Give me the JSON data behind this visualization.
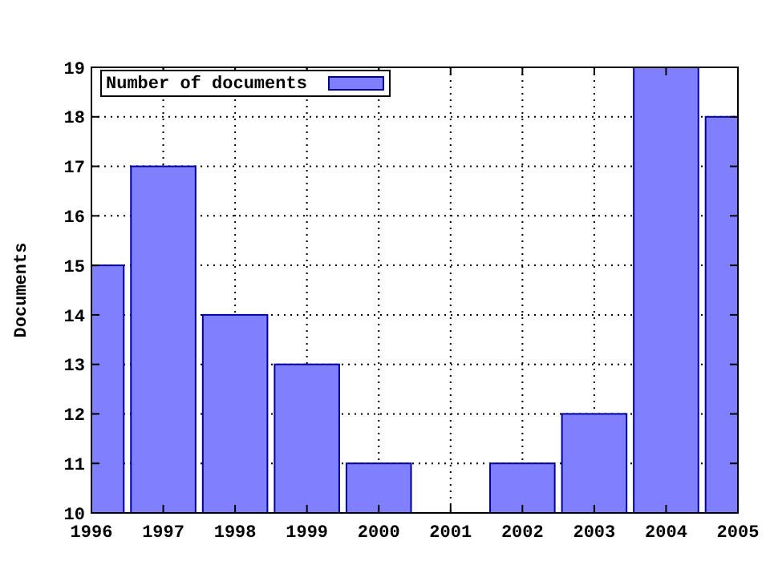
{
  "chart_data": {
    "type": "bar",
    "ylabel": "Documents",
    "x": [
      1996,
      1997,
      1998,
      1999,
      2000,
      2001,
      2002,
      2003,
      2004,
      2005
    ],
    "series": [
      {
        "name": "Number of documents",
        "color": "#8080ff",
        "values": [
          15,
          17,
          14,
          13,
          11,
          10,
          11,
          12,
          19,
          18
        ]
      }
    ],
    "xlim": [
      1996,
      2005
    ],
    "xticks": [
      1996,
      1997,
      1998,
      1999,
      2000,
      2001,
      2002,
      2003,
      2004,
      2005
    ],
    "ylim": [
      10,
      19
    ],
    "yticks": [
      10,
      11,
      12,
      13,
      14,
      15,
      16,
      17,
      18,
      19
    ],
    "grid": true,
    "legend": "top left"
  }
}
